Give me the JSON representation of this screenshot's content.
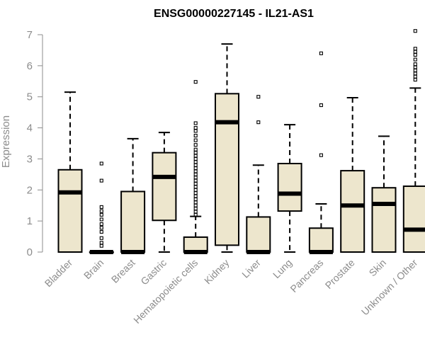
{
  "chart_data": {
    "type": "boxplot",
    "title": "ENSG00000227145 - IL21-AS1",
    "ylabel": "Expression",
    "xlabel": "",
    "ylim": [
      0,
      7
    ],
    "yticks": [
      0,
      1,
      2,
      3,
      4,
      5,
      6,
      7
    ],
    "box_color": "#ede6cd",
    "axis_color": "#8c8c8c",
    "categories": [
      "Bladder",
      "Brain",
      "Breast",
      "Gastric",
      "Hematopoietic cells",
      "Kidney",
      "Liver",
      "Lung",
      "Pancreas",
      "Prostate",
      "Skin",
      "Unknown / Other"
    ],
    "boxes": [
      {
        "category": "Bladder",
        "min": 0,
        "q1": 0,
        "median": 1.92,
        "q3": 2.65,
        "max": 5.15,
        "outliers": []
      },
      {
        "category": "Brain",
        "min": 0,
        "q1": 0,
        "median": 0,
        "q3": 0,
        "max": 0,
        "outliers": [
          0.2,
          0.3,
          0.45,
          0.65,
          0.78,
          0.9,
          1.05,
          1.2,
          1.32,
          1.45,
          2.3,
          2.85
        ]
      },
      {
        "category": "Breast",
        "min": 0,
        "q1": 0,
        "median": 0,
        "q3": 1.95,
        "max": 3.65,
        "outliers": []
      },
      {
        "category": "Gastric",
        "min": 0,
        "q1": 1.02,
        "median": 2.42,
        "q3": 3.2,
        "max": 3.85,
        "outliers": []
      },
      {
        "category": "Hematopoietic cells",
        "min": 0,
        "q1": 0,
        "median": 0,
        "q3": 0.48,
        "max": 1.15,
        "outliers": [
          1.2,
          1.3,
          1.4,
          1.5,
          1.6,
          1.7,
          1.8,
          1.9,
          2.0,
          2.1,
          2.2,
          2.3,
          2.4,
          2.5,
          2.6,
          2.7,
          2.8,
          2.9,
          3.0,
          3.1,
          3.2,
          3.3,
          3.45,
          3.6,
          3.75,
          3.9,
          4.0,
          4.15,
          5.48
        ]
      },
      {
        "category": "Kidney",
        "min": 0,
        "q1": 0.22,
        "median": 4.18,
        "q3": 5.1,
        "max": 6.7,
        "outliers": []
      },
      {
        "category": "Liver",
        "min": 0,
        "q1": 0,
        "median": 0,
        "q3": 1.13,
        "max": 2.8,
        "outliers": [
          4.18,
          5.0
        ]
      },
      {
        "category": "Lung",
        "min": 0,
        "q1": 1.32,
        "median": 1.88,
        "q3": 2.85,
        "max": 4.1,
        "outliers": []
      },
      {
        "category": "Pancreas",
        "min": 0,
        "q1": 0,
        "median": 0,
        "q3": 0.77,
        "max": 1.55,
        "outliers": [
          3.12,
          4.73,
          6.4
        ]
      },
      {
        "category": "Prostate",
        "min": 0,
        "q1": 0,
        "median": 1.5,
        "q3": 2.62,
        "max": 4.97,
        "outliers": []
      },
      {
        "category": "Skin",
        "min": 0,
        "q1": 0,
        "median": 1.55,
        "q3": 2.07,
        "max": 3.73,
        "outliers": []
      },
      {
        "category": "Unknown / Other",
        "min": 0,
        "q1": 0,
        "median": 0.72,
        "q3": 2.12,
        "max": 5.28,
        "outliers": [
          5.55,
          5.65,
          5.75,
          5.85,
          5.95,
          6.05,
          6.2,
          6.35,
          6.45,
          6.55,
          7.12
        ]
      }
    ]
  }
}
